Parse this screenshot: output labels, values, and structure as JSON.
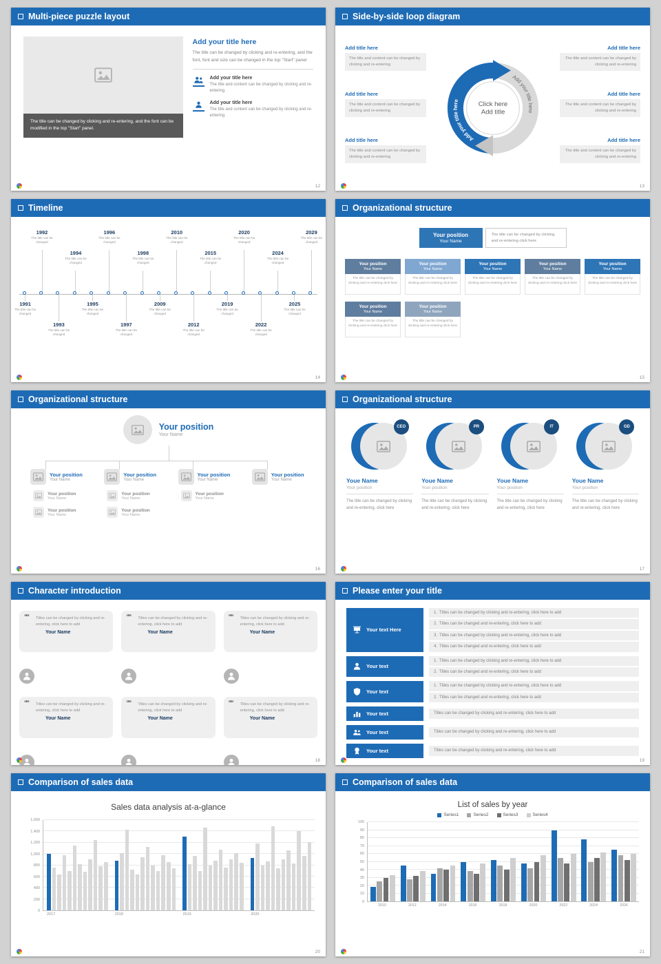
{
  "theme": {
    "accent": "#1e6bb5",
    "accent_dark": "#1b4e7f",
    "page_bg": "#d2d2d2",
    "bar_gray": "#d9d9d9"
  },
  "slides": [
    {
      "header": "Multi-piece puzzle layout",
      "page_number": "12",
      "caption": "The title can be changed by clicking and re-entering, and the font can be modified in the top \"Start\" panel.",
      "right": {
        "title": "Add your title here",
        "text": "The title can be changed by clicking and re-entering, and the font, font and size can be changed in the top \"Start\" panel",
        "items": [
          {
            "title": "Add your title here",
            "text": "The title and content can be changed by clicking and re-entering"
          },
          {
            "title": "Add your title here",
            "text": "The title and content can be changed by clicking and re-entering"
          }
        ]
      }
    },
    {
      "header": "Side-by-side loop diagram",
      "page_number": "13",
      "loop": {
        "center_line1": "Click here",
        "center_line2": "Add title",
        "left_arc_text": "Add your title here",
        "right_arc_text": "Add your title here"
      },
      "left_blocks": [
        {
          "title": "Add title here",
          "text": "The title and content can be changed by clicking and re-entering"
        },
        {
          "title": "Add title here",
          "text": "The title and content can be changed by clicking and re-entering"
        },
        {
          "title": "Add title here",
          "text": "The title and content can be changed by clicking and re-entering"
        }
      ],
      "right_blocks": [
        {
          "title": "Add title here",
          "text": "The title and content can be changed by clicking and re-entering"
        },
        {
          "title": "Add title here",
          "text": "The title and content can be changed by clicking and re-entering"
        },
        {
          "title": "Add title here",
          "text": "The title and content can be changed by clicking and re-entering"
        }
      ]
    },
    {
      "header": "Timeline",
      "page_number": "14",
      "items": [
        {
          "year": "1991",
          "text": "The title can be changed",
          "side": "bottom",
          "level": 1
        },
        {
          "year": "1992",
          "text": "The title can be changed",
          "side": "top",
          "level": 1
        },
        {
          "year": "1993",
          "text": "The title can be changed",
          "side": "bottom",
          "level": 2
        },
        {
          "year": "1994",
          "text": "The title can be changed",
          "side": "top",
          "level": 2
        },
        {
          "year": "1995",
          "text": "The title can be changed",
          "side": "bottom",
          "level": 1
        },
        {
          "year": "1996",
          "text": "The title can be changed",
          "side": "top",
          "level": 1
        },
        {
          "year": "1997",
          "text": "The title can be changed",
          "side": "bottom",
          "level": 2
        },
        {
          "year": "1998",
          "text": "The title can be changed",
          "side": "top",
          "level": 2
        },
        {
          "year": "2009",
          "text": "The title can be changed",
          "side": "bottom",
          "level": 1
        },
        {
          "year": "2010",
          "text": "The title can be changed",
          "side": "top",
          "level": 1
        },
        {
          "year": "2012",
          "text": "The title can be changed",
          "side": "bottom",
          "level": 2
        },
        {
          "year": "2015",
          "text": "The title can be changed",
          "side": "top",
          "level": 2
        },
        {
          "year": "2019",
          "text": "The title can be changed",
          "side": "bottom",
          "level": 1
        },
        {
          "year": "2020",
          "text": "The title can be changed",
          "side": "top",
          "level": 1
        },
        {
          "year": "2022",
          "text": "The title can be changed",
          "side": "bottom",
          "level": 2
        },
        {
          "year": "2024",
          "text": "The title can be changed",
          "side": "top",
          "level": 2
        },
        {
          "year": "2025",
          "text": "The title can be changed",
          "side": "bottom",
          "level": 1
        },
        {
          "year": "2029",
          "text": "The title can be changed",
          "side": "top",
          "level": 1
        }
      ]
    },
    {
      "header": "Organizational structure",
      "page_number": "15",
      "root": {
        "position": "Your position",
        "name": "Your Name",
        "note": "The title can be changed by clicking and re-entering click here"
      },
      "boxes_row1": [
        {
          "position": "Your position",
          "name": "Your Name",
          "text": "The title can be changed by clicking and re-entering click here",
          "color": "#5f7d9e"
        },
        {
          "position": "Your position",
          "name": "Your Name",
          "text": "The title can be changed by clicking and re-entering click here",
          "color": "#7fa7d1"
        },
        {
          "position": "Your position",
          "name": "Your Name",
          "text": "The title can be changed by clicking and re-entering click here",
          "color": "#2e75b6"
        },
        {
          "position": "Your position",
          "name": "Your Name",
          "text": "The title can be changed by clicking and re-entering click here",
          "color": "#5f7d9e"
        },
        {
          "position": "Your position",
          "name": "Your Name",
          "text": "The title can be changed by clicking and re-entering click here",
          "color": "#2e75b6"
        }
      ],
      "boxes_row2": [
        {
          "position": "Your position",
          "name": "Your Name",
          "text": "The title can be changed by clicking and re-entering click here",
          "color": "#5f7d9e"
        },
        {
          "position": "Your position",
          "name": "Your Name",
          "text": "The title can be changed by clicking and re-entering click here",
          "color": "#8fa5bd"
        }
      ]
    },
    {
      "header": "Organizational structure",
      "page_number": "16",
      "root": {
        "position": "Your position",
        "name": "Your Name"
      },
      "branches": [
        {
          "position": "Your position",
          "name": "Your Name",
          "subs": [
            {
              "position": "Your position",
              "name": "Your Name"
            },
            {
              "position": "Your position",
              "name": "Your Name"
            }
          ]
        },
        {
          "position": "Your position",
          "name": "Your Name",
          "subs": [
            {
              "position": "Your position",
              "name": "Your Name"
            },
            {
              "position": "Your position",
              "name": "Your Name"
            }
          ]
        },
        {
          "position": "Your position",
          "name": "Your Name",
          "subs": [
            {
              "position": "Your position",
              "name": "Your Name"
            }
          ]
        },
        {
          "position": "Your position",
          "name": "Your Name",
          "subs": []
        }
      ]
    },
    {
      "header": "Organizational structure",
      "page_number": "17",
      "members": [
        {
          "badge": "CEO",
          "name": "Youe Name",
          "position": "Your position",
          "text": "The title can be changed by clicking and re-entering, click here"
        },
        {
          "badge": "PR",
          "name": "Youe Name",
          "position": "Your position",
          "text": "The title can be changed by clicking and re-entering, click here"
        },
        {
          "badge": "IT",
          "name": "Youe Name",
          "position": "Your position",
          "text": "The title can be changed by clicking and re-entering, click here"
        },
        {
          "badge": "GD",
          "name": "Youe Name",
          "position": "Your position",
          "text": "The title can be changed by clicking and re-entering, click here"
        }
      ]
    },
    {
      "header": "Character introduction",
      "page_number": "18",
      "cards": [
        {
          "text": "Titles can be changed by clicking and re-entering, click here to add",
          "name": "Your Name"
        },
        {
          "text": "Titles can be changed by clicking and re-entering, click here to add",
          "name": "Your Name"
        },
        {
          "text": "Titles can be changed by clicking and re-entering, click here to add",
          "name": "Your Name"
        },
        {
          "text": "Titles can be changed by clicking and re-entering, click here to add",
          "name": "Your Name"
        },
        {
          "text": "Titles can be changed by clicking and re-entering, click here to add",
          "name": "Your Name"
        },
        {
          "text": "Titles can be changed by clicking and re-entering, click here to add",
          "name": "Your Name"
        }
      ]
    },
    {
      "header": "Please enter your title",
      "page_number": "19",
      "rows": [
        {
          "button": "Your text Here",
          "icon": "presentation-icon",
          "icon_key": "presentation",
          "numbered": true,
          "items": [
            "Titles can be changed by clicking and re-entering, click here to add",
            "Titles can be changed and re-entering, click here to add",
            "Titles can be changed by clicking and re-entering, click here to add",
            "Titles can be changed and re-entering, click here to add"
          ]
        },
        {
          "button": "Your text",
          "icon": "person-icon",
          "icon_key": "person",
          "numbered": true,
          "items": [
            "Titles can be changed by clicking and re-entering, click here to add",
            "Titles can be changed and re-entering, click here to add"
          ]
        },
        {
          "button": "Your text",
          "icon": "shield-icon",
          "icon_key": "shield",
          "numbered": true,
          "items": [
            "Titles can be changed by clicking and re-entering, click here to add",
            "Titles can be changed and re-entering, click here to add"
          ]
        },
        {
          "button": "Your text",
          "icon": "bar-chart-icon",
          "icon_key": "chart",
          "numbered": false,
          "items": [
            "Titles can be changed by clicking and re-entering, click here to add"
          ]
        },
        {
          "button": "Your text",
          "icon": "people-icon",
          "icon_key": "people",
          "numbered": false,
          "items": [
            "Titles can be changed by clicking and re-entering, click here to add"
          ]
        },
        {
          "button": "Your text",
          "icon": "award-icon",
          "icon_key": "award",
          "numbered": false,
          "items": [
            "Titles can be changed by clicking and re-entering, click here to add"
          ]
        }
      ]
    },
    {
      "header": "Comparison of sales data",
      "page_number": "20"
    },
    {
      "header": "Comparison of sales data",
      "page_number": "21"
    }
  ],
  "chart_data": [
    {
      "type": "bar",
      "title": "Sales data analysis at-a-glance",
      "xlabel": "",
      "ylabel": "",
      "ylim": [
        0,
        1600
      ],
      "ytick_step": 200,
      "ytick_labels": [
        "0",
        "200",
        "400",
        "600",
        "800",
        "1,000",
        "1,200",
        "1,400",
        "1,600"
      ],
      "grid": true,
      "groups": [
        "2017",
        "2018",
        "2019",
        "2020"
      ],
      "values": [
        [
          1000,
          760,
          640,
          980,
          700,
          1150,
          820,
          690,
          900,
          1250,
          780,
          860
        ],
        [
          880,
          1020,
          1430,
          720,
          640,
          940,
          1120,
          790,
          700,
          980,
          860,
          740
        ],
        [
          1310,
          820,
          960,
          700,
          1460,
          790,
          880,
          1080,
          760,
          900,
          1020,
          840
        ],
        [
          930,
          1180,
          800,
          870,
          1490,
          740,
          910,
          1060,
          830,
          1400,
          960,
          1210
        ]
      ],
      "highlight_index": 0,
      "highlight_color": "#1e6bb5",
      "bar_color": "#d9d9d9"
    },
    {
      "type": "bar",
      "title": "List of sales by year",
      "xlabel": "",
      "ylabel": "",
      "ylim": [
        0,
        100
      ],
      "ytick_step": 10,
      "grid": true,
      "legend_position": "top",
      "categories": [
        "2010",
        "2012",
        "2014",
        "2016",
        "2018",
        "2020",
        "2022",
        "2024",
        "2026"
      ],
      "series": [
        {
          "name": "Series1",
          "color": "#1e6bb5",
          "values": [
            18,
            45,
            35,
            50,
            52,
            48,
            90,
            78,
            65
          ]
        },
        {
          "name": "Series2",
          "color": "#a6a6a6",
          "values": [
            25,
            28,
            42,
            38,
            45,
            42,
            55,
            50,
            58
          ]
        },
        {
          "name": "Series3",
          "color": "#6f6f6f",
          "values": [
            30,
            32,
            40,
            35,
            40,
            50,
            48,
            55,
            52
          ]
        },
        {
          "name": "Series4",
          "color": "#cfcfcf",
          "values": [
            33,
            38,
            45,
            48,
            55,
            58,
            60,
            62,
            60
          ]
        }
      ]
    }
  ]
}
